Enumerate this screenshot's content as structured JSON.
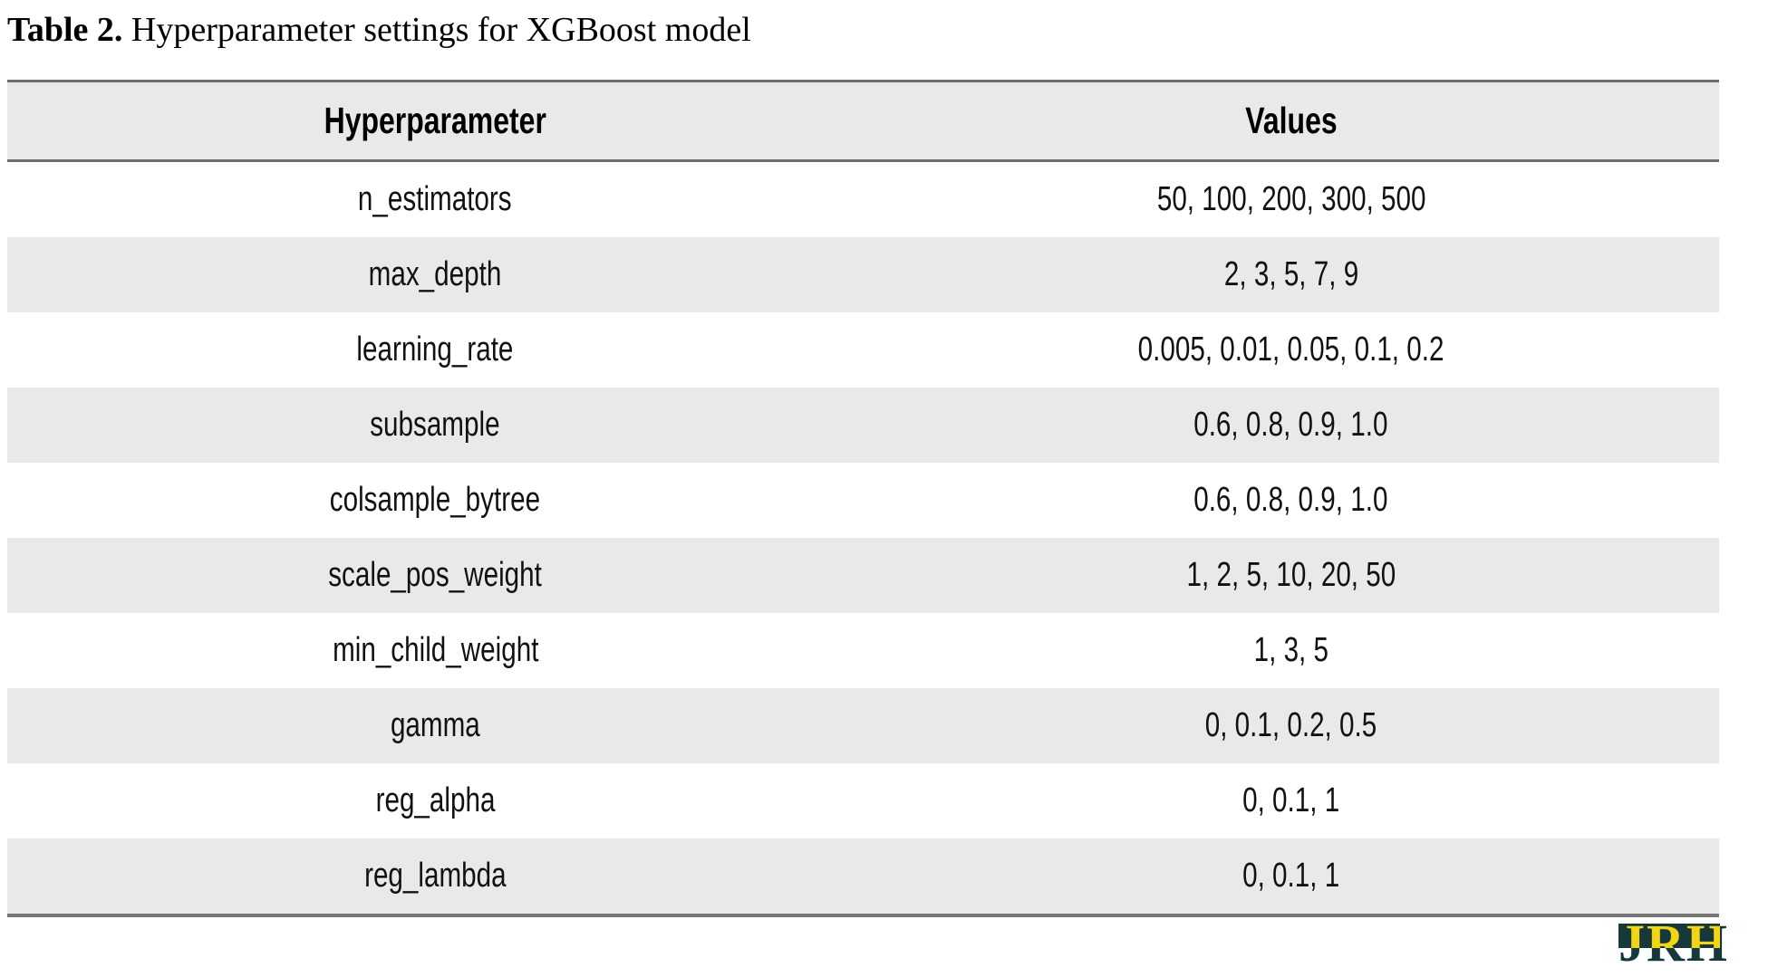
{
  "caption": {
    "label": "Table 2.",
    "text": " Hyperparameter settings for XGBoost model"
  },
  "table": {
    "columns": [
      "Hyperparameter",
      "Values"
    ],
    "rows": [
      {
        "param": "n_estimators",
        "values": "50, 100, 200, 300, 500"
      },
      {
        "param": "max_depth",
        "values": "2, 3, 5, 7, 9"
      },
      {
        "param": "learning_rate",
        "values": "0.005, 0.01, 0.05, 0.1, 0.2"
      },
      {
        "param": "subsample",
        "values": "0.6, 0.8, 0.9, 1.0"
      },
      {
        "param": "colsample_bytree",
        "values": "0.6, 0.8, 0.9, 1.0"
      },
      {
        "param": "scale_pos_weight",
        "values": "1, 2, 5, 10, 20, 50"
      },
      {
        "param": "min_child_weight",
        "values": "1, 3, 5"
      },
      {
        "param": "gamma",
        "values": "0, 0.1, 0.2, 0.5"
      },
      {
        "param": "reg_alpha",
        "values": "0, 0.1, 1"
      },
      {
        "param": "reg_lambda",
        "values": "0, 0.1, 1"
      }
    ]
  },
  "logo": {
    "text": "JRH"
  },
  "colors": {
    "row_alt": "#e9e9ea",
    "table_border": "#6e6e6e",
    "logo_background": "#16383a",
    "logo_text": "#f2d513"
  }
}
